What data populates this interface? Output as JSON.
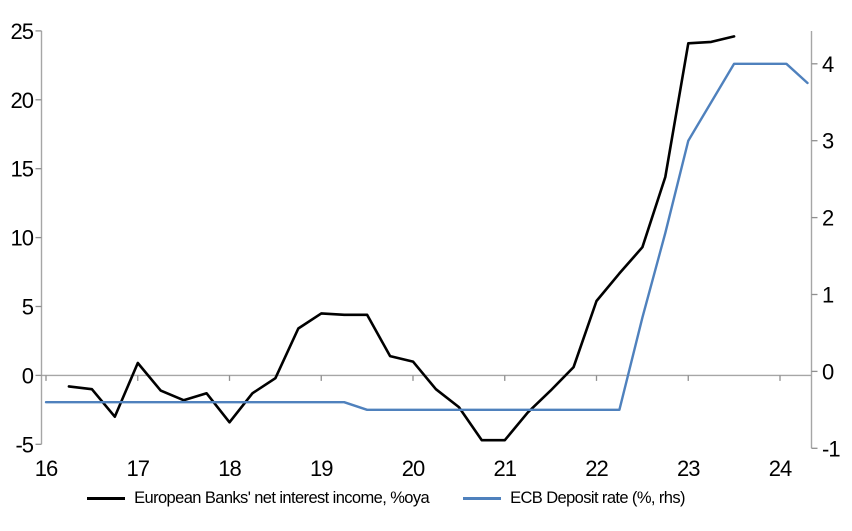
{
  "chart_data": {
    "type": "line",
    "title": "",
    "x_axis": {
      "tick_values": [
        16,
        17,
        18,
        19,
        20,
        21,
        22,
        23,
        24
      ],
      "tick_labels": [
        "16",
        "17",
        "18",
        "19",
        "20",
        "21",
        "22",
        "23",
        "24"
      ],
      "range": [
        15.95,
        24.35
      ],
      "ticks_on_zero_line": true
    },
    "left_y_axis": {
      "tick_values": [
        -5,
        0,
        5,
        10,
        15,
        20,
        25
      ],
      "tick_labels": [
        "-5",
        "0",
        "5",
        "10",
        "15",
        "20",
        "25"
      ],
      "range": [
        -5,
        25
      ]
    },
    "right_y_axis": {
      "tick_values": [
        -1,
        0,
        1,
        2,
        3,
        4
      ],
      "tick_labels": [
        "-1",
        "0",
        "1",
        "2",
        "3",
        "4"
      ],
      "range": [
        -1,
        4.42
      ]
    },
    "grid": "zero-line-only",
    "legend_position": "bottom-center",
    "series": [
      {
        "name": "European Banks' net interest income, %oya",
        "axis": "left",
        "color": "#000000",
        "line_width": 2.6,
        "x": [
          16.25,
          16.5,
          16.75,
          17.0,
          17.25,
          17.5,
          17.75,
          18.0,
          18.25,
          18.5,
          18.75,
          19.0,
          19.25,
          19.5,
          19.75,
          20.0,
          20.25,
          20.5,
          20.75,
          21.0,
          21.25,
          21.5,
          21.75,
          22.0,
          22.25,
          22.5,
          22.75,
          23.0,
          23.25,
          23.5
        ],
        "y": [
          -0.8,
          -1.0,
          -3.0,
          0.9,
          -1.1,
          -1.8,
          -1.3,
          -3.4,
          -1.3,
          -0.2,
          3.4,
          4.5,
          4.4,
          4.4,
          1.4,
          1.0,
          -1.0,
          -2.3,
          -4.7,
          -4.7,
          -2.7,
          -1.1,
          0.6,
          5.4,
          7.4,
          9.3,
          14.4,
          24.1,
          24.2,
          24.6
        ]
      },
      {
        "name": "ECB Deposit rate (%, rhs)",
        "axis": "right",
        "color": "#4f81bd",
        "line_width": 2.4,
        "x": [
          16.0,
          16.25,
          16.5,
          16.75,
          17.0,
          17.25,
          17.5,
          17.75,
          18.0,
          18.25,
          18.5,
          18.75,
          19.0,
          19.25,
          19.5,
          19.75,
          20.0,
          20.25,
          20.5,
          20.75,
          21.0,
          21.25,
          21.5,
          21.75,
          22.0,
          22.25,
          22.5,
          22.75,
          23.0,
          23.25,
          23.5,
          23.75,
          24.0,
          24.07,
          24.3
        ],
        "y": [
          -0.4,
          -0.4,
          -0.4,
          -0.4,
          -0.4,
          -0.4,
          -0.4,
          -0.4,
          -0.4,
          -0.4,
          -0.4,
          -0.4,
          -0.4,
          -0.4,
          -0.5,
          -0.5,
          -0.5,
          -0.5,
          -0.5,
          -0.5,
          -0.5,
          -0.5,
          -0.5,
          -0.5,
          -0.5,
          -0.5,
          0.7,
          1.8,
          3.0,
          3.5,
          4.0,
          4.0,
          4.0,
          4.0,
          3.75
        ]
      }
    ]
  },
  "legend": {
    "items": [
      {
        "label": "European Banks' net interest income, %oya",
        "swatch_color": "#000000"
      },
      {
        "label": "ECB Deposit rate (%, rhs)",
        "swatch_color": "#4f81bd"
      }
    ]
  },
  "colors": {
    "background": "#ffffff",
    "axis_line": "#a6a6a6",
    "zero_line": "#a6a6a6",
    "tick_mark": "#8f8f8f",
    "text": "#000000",
    "nii_line": "#000000",
    "ecb_line": "#4f81bd"
  }
}
